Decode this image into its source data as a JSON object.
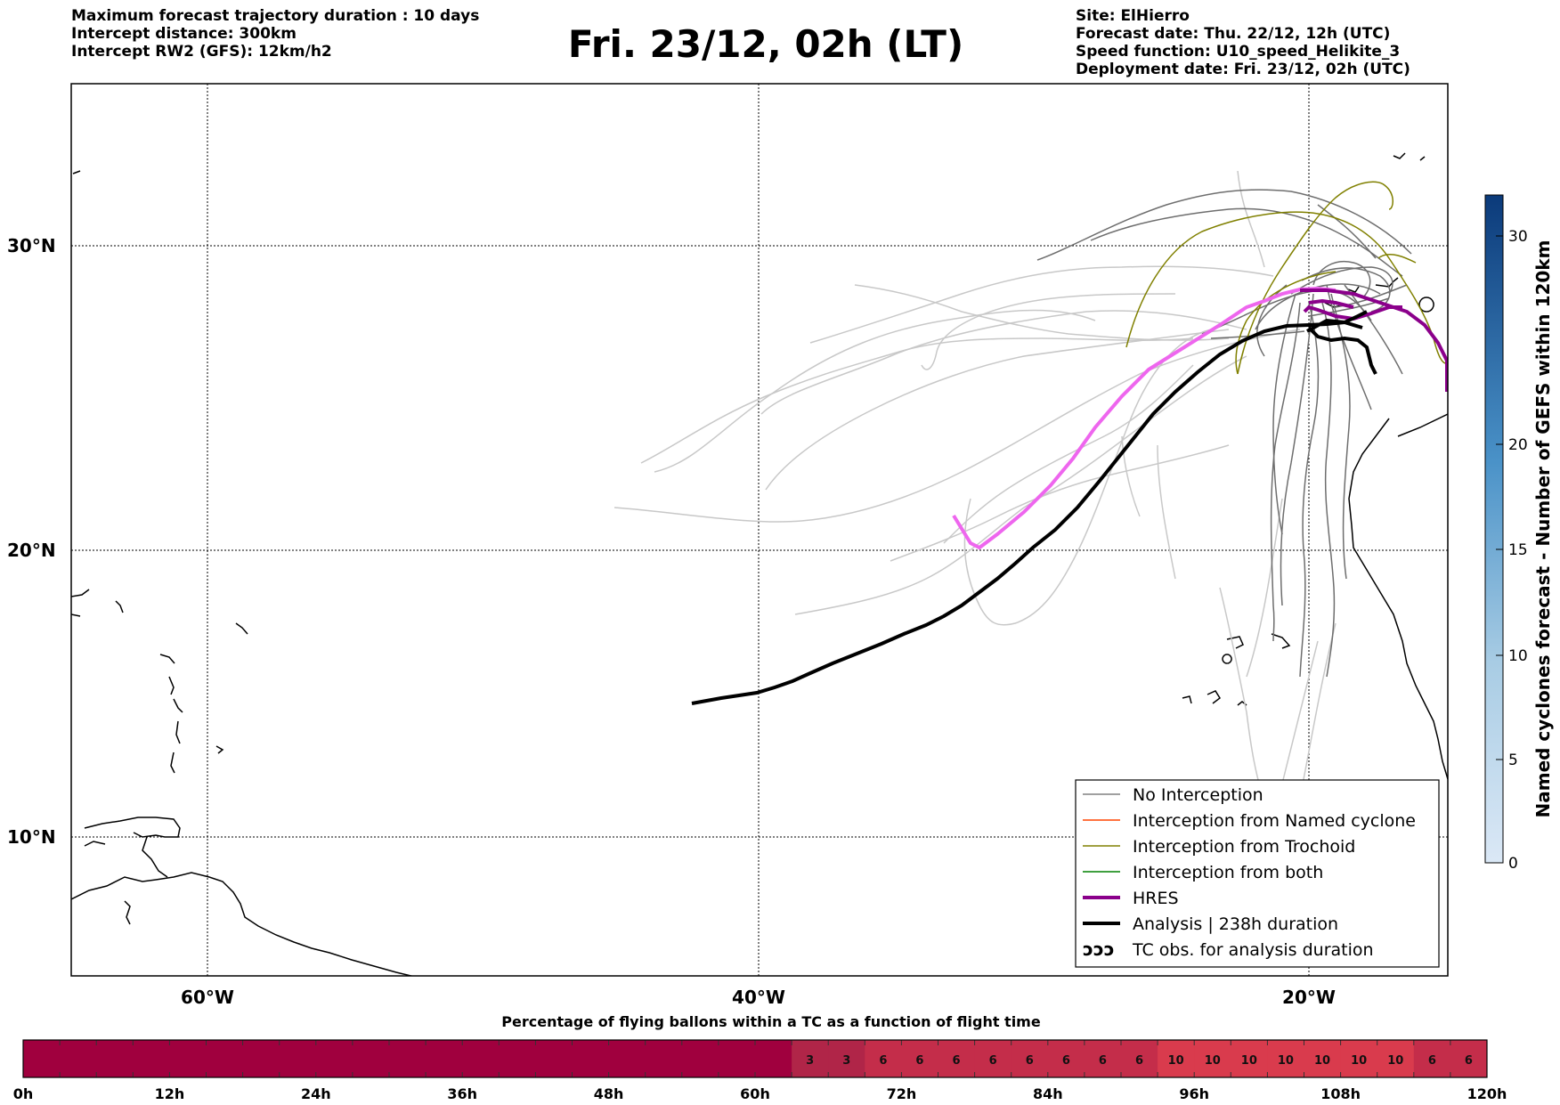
{
  "header": {
    "left": [
      "Maximum forecast trajectory duration : 10 days",
      "Intercept distance: 300km",
      "Intercept RW2 (GFS):  12km/h2"
    ],
    "title": "Fri. 23/12, 02h (LT)",
    "right": [
      "Site: ElHierro",
      "Forecast date: Thu. 22/12, 12h (UTC)",
      "Speed function: U10_speed_Helikite_3",
      "Deployment date: Fri. 23/12, 02h (UTC)"
    ]
  },
  "map": {
    "lat_labels": [
      "30°N",
      "20°N",
      "10°N"
    ],
    "lon_labels": [
      "60°W",
      "40°W",
      "20°W"
    ],
    "legend": [
      {
        "label": "No Interception",
        "color": "#808080",
        "width": 1.5
      },
      {
        "label": "Interception from Named cyclone",
        "color": "#ff4500",
        "width": 1.5
      },
      {
        "label": "Interception from Trochoid",
        "color": "#808000",
        "width": 1.5
      },
      {
        "label": "Interception from both",
        "color": "#008000",
        "width": 1.5
      },
      {
        "label": "HRES",
        "color": "#8b008b",
        "width": 4
      },
      {
        "label": "Analysis | 238h duration",
        "color": "#000000",
        "width": 4
      },
      {
        "label": "TC obs. for analysis duration",
        "symbol": "ↄↄↄ"
      }
    ]
  },
  "colorbar": {
    "label": "Named cyclones forecast - Number of GEFS within 120km",
    "ticks": [
      "0",
      "5",
      "10",
      "15",
      "20",
      "30"
    ]
  },
  "timebar": {
    "title": "Percentage of flying ballons within a TC as a function of flight time",
    "cell_values": [
      "",
      "",
      "",
      "",
      "",
      "",
      "",
      "",
      "",
      "",
      "",
      "",
      "",
      "",
      "",
      "",
      "",
      "",
      "",
      "",
      "",
      "3",
      "3",
      "6",
      "6",
      "6",
      "6",
      "6",
      "6",
      "6",
      "6",
      "10",
      "10",
      "10",
      "10",
      "10",
      "10",
      "10",
      "6",
      "6"
    ],
    "tick_labels": [
      "0h",
      "12h",
      "24h",
      "36h",
      "48h",
      "60h",
      "72h",
      "84h",
      "96h",
      "108h",
      "120h"
    ]
  }
}
